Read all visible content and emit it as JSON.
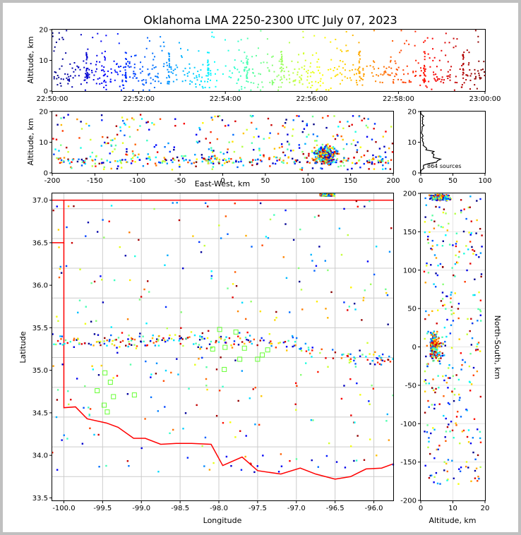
{
  "chart_data": [
    {
      "type": "scatter",
      "id": "time-height",
      "title": "Oklahoma LMA 2250-2300 UTC July 07, 2023",
      "ylabel": "Altitude, km",
      "xlim": [
        "22:50:00",
        "23:00:00"
      ],
      "ylim": [
        0,
        20
      ],
      "xticks": [
        "22:50:00",
        "22:52:00",
        "22:54:00",
        "22:56:00",
        "22:58:00",
        "23:00:00"
      ],
      "yticks": [
        "0",
        "10",
        "20"
      ],
      "color_by": "time",
      "colormap": "jet"
    },
    {
      "type": "scatter",
      "id": "east-west-altitude",
      "xlabel": "East-West, km",
      "ylabel": "Altitude, km",
      "xlim": [
        -200,
        200
      ],
      "ylim": [
        0,
        20
      ],
      "xticks": [
        "-200",
        "-150",
        "-100",
        "-50",
        "0",
        "50",
        "100",
        "150",
        "200"
      ],
      "yticks": [
        "0",
        "10",
        "20"
      ]
    },
    {
      "type": "line",
      "id": "altitude-histogram",
      "annotation": "864 sources",
      "xlim": [
        0,
        100
      ],
      "ylim": [
        0,
        20
      ],
      "xticks": [
        "0",
        "50",
        "100"
      ],
      "yticks": [
        "0",
        "10",
        "20"
      ]
    },
    {
      "type": "scatter",
      "id": "plan-view",
      "xlabel": "Longitude",
      "ylabel": "Latitude",
      "xlim": [
        -100.15,
        -95.75
      ],
      "ylim": [
        33.47,
        37.08
      ],
      "xticks": [
        "-100.0",
        "-99.5",
        "-99.0",
        "-98.5",
        "-98.0",
        "-97.5",
        "-97.0",
        "-96.5",
        "-96.0"
      ],
      "yticks": [
        "33.5",
        "34.0",
        "34.5",
        "35.0",
        "35.5",
        "36.0",
        "36.5",
        "37.0"
      ],
      "stations": [
        {
          "lon": -99.47,
          "lat": 34.97
        },
        {
          "lon": -99.57,
          "lat": 34.76
        },
        {
          "lon": -99.4,
          "lat": 34.86
        },
        {
          "lon": -99.36,
          "lat": 34.69
        },
        {
          "lon": -99.48,
          "lat": 34.59
        },
        {
          "lon": -99.44,
          "lat": 34.51
        },
        {
          "lon": -99.09,
          "lat": 34.71
        },
        {
          "lon": -97.99,
          "lat": 35.48
        },
        {
          "lon": -97.78,
          "lat": 35.45
        },
        {
          "lon": -97.92,
          "lat": 35.27
        },
        {
          "lon": -98.08,
          "lat": 35.25
        },
        {
          "lon": -97.67,
          "lat": 35.26
        },
        {
          "lon": -97.93,
          "lat": 35.01
        },
        {
          "lon": -97.73,
          "lat": 35.13
        },
        {
          "lon": -97.5,
          "lat": 35.13
        },
        {
          "lon": -97.44,
          "lat": 35.18
        },
        {
          "lon": -97.37,
          "lat": 35.24
        }
      ]
    },
    {
      "type": "scatter",
      "id": "altitude-north-south",
      "xlabel": "Altitude, km",
      "ylabel": "North-South, km",
      "xlim": [
        0,
        20
      ],
      "ylim": [
        -200,
        200
      ],
      "xticks": [
        "0",
        "10",
        "20"
      ],
      "yticks": [
        "-200",
        "-150",
        "-100",
        "-50",
        "0",
        "50",
        "100",
        "150",
        "200"
      ]
    }
  ]
}
